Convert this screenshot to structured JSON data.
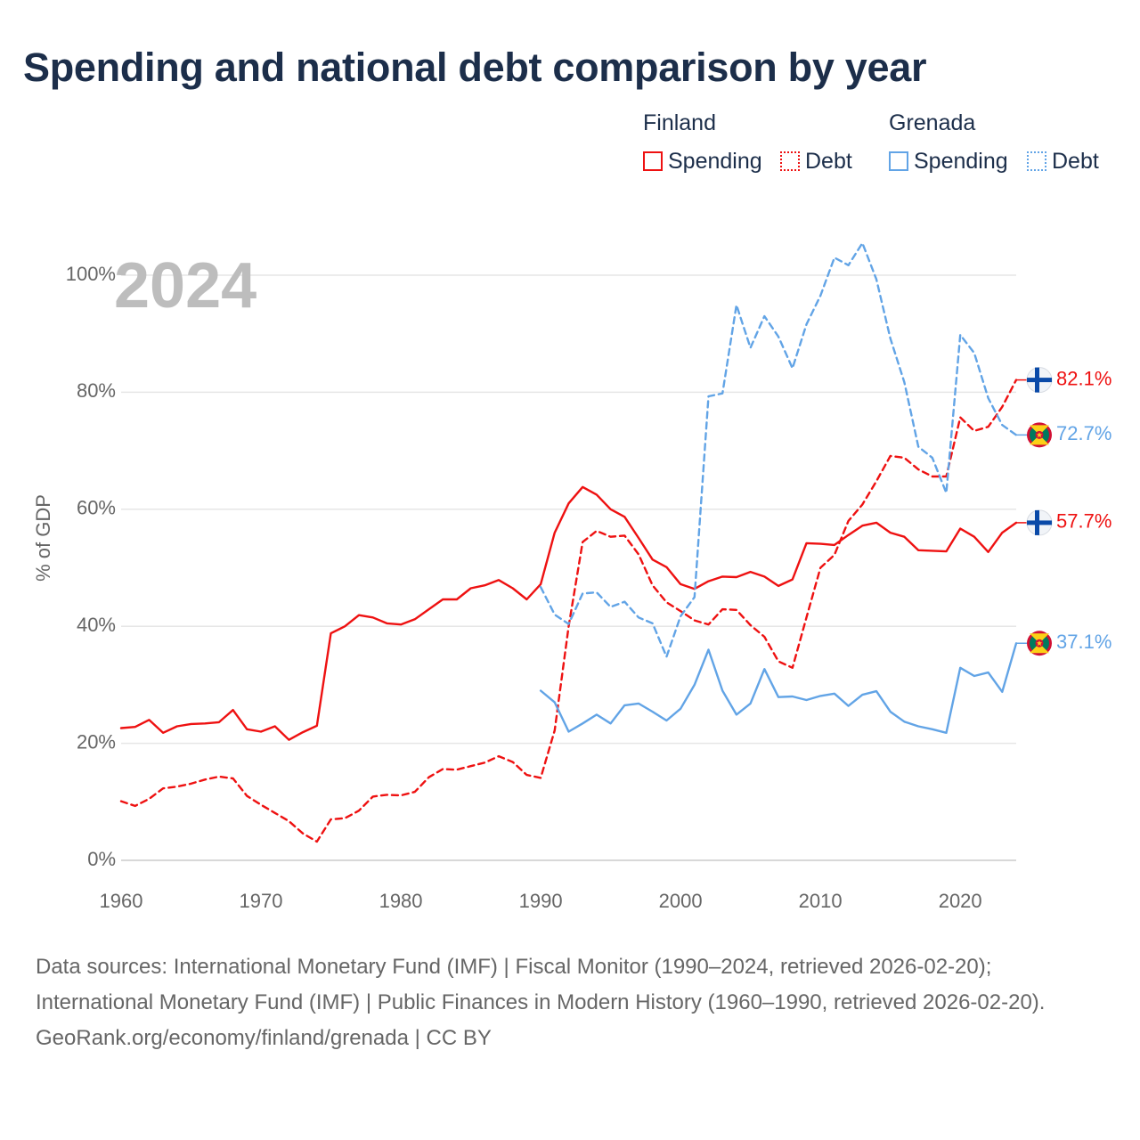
{
  "chart_data": {
    "type": "line",
    "title": "Spending and national debt comparison by year",
    "ylabel": "% of GDP",
    "xlabel": "",
    "year_label": "2024",
    "xlim": [
      1960,
      2024
    ],
    "ylim": [
      0,
      105
    ],
    "x_ticks": [
      1960,
      1970,
      1980,
      1990,
      2000,
      2010,
      2020
    ],
    "y_ticks": [
      {
        "value": 0,
        "label": "0%"
      },
      {
        "value": 20,
        "label": "20%"
      },
      {
        "value": 40,
        "label": "40%"
      },
      {
        "value": 60,
        "label": "60%"
      },
      {
        "value": 80,
        "label": "80%"
      },
      {
        "value": 100,
        "label": "100%"
      }
    ],
    "legend": [
      {
        "country": "Finland",
        "items": [
          "Spending",
          "Debt"
        ]
      },
      {
        "country": "Grenada",
        "items": [
          "Spending",
          "Debt"
        ]
      }
    ],
    "series": [
      {
        "name": "Finland Spending",
        "country": "Finland",
        "measure": "Spending",
        "style": "solid",
        "color": "#ee1111",
        "start_year": 1960,
        "end_label": "57.7%",
        "values": [
          22.6,
          22.8,
          24.0,
          21.8,
          22.9,
          23.3,
          23.4,
          23.6,
          25.7,
          22.4,
          22.0,
          22.9,
          20.6,
          21.9,
          23.0,
          38.8,
          40.0,
          41.9,
          41.5,
          40.5,
          40.3,
          41.2,
          42.9,
          44.6,
          44.6,
          46.5,
          47.0,
          47.9,
          46.5,
          44.6,
          47.2,
          56.0,
          61.0,
          63.8,
          62.5,
          60.0,
          58.7,
          55.1,
          51.4,
          50.1,
          47.2,
          46.4,
          47.7,
          48.5,
          48.4,
          49.3,
          48.5,
          46.9,
          48.0,
          54.2,
          54.1,
          53.9,
          55.6,
          57.2,
          57.7,
          56.0,
          55.3,
          53.0,
          52.9,
          52.8,
          56.7,
          55.3,
          52.7,
          56.0,
          57.7
        ]
      },
      {
        "name": "Finland Debt",
        "country": "Finland",
        "measure": "Debt",
        "style": "dashed",
        "color": "#ee1111",
        "start_year": 1960,
        "end_label": "82.1%",
        "values": [
          10.1,
          9.3,
          10.5,
          12.3,
          12.6,
          13.1,
          13.8,
          14.3,
          14.0,
          11.0,
          9.5,
          8.1,
          6.7,
          4.6,
          3.2,
          7.0,
          7.2,
          8.5,
          10.9,
          11.2,
          11.1,
          11.7,
          14.2,
          15.6,
          15.5,
          16.1,
          16.7,
          17.8,
          16.8,
          14.6,
          14.1,
          22.2,
          40.0,
          54.4,
          56.3,
          55.3,
          55.5,
          52.3,
          47.0,
          44.1,
          42.6,
          41.0,
          40.3,
          42.9,
          42.8,
          40.2,
          38.2,
          34.0,
          32.9,
          41.5,
          50.0,
          52.2,
          58.0,
          60.8,
          64.8,
          69.1,
          68.8,
          66.8,
          65.6,
          65.6,
          75.7,
          73.4,
          74.1,
          77.5,
          82.1
        ]
      },
      {
        "name": "Grenada Spending",
        "country": "Grenada",
        "measure": "Spending",
        "style": "solid",
        "color": "#62a4e6",
        "start_year": 1990,
        "end_label": "37.1%",
        "values": [
          29.0,
          27.0,
          22.0,
          23.4,
          24.9,
          23.4,
          26.5,
          26.8,
          25.4,
          23.9,
          25.9,
          30.0,
          36.0,
          29.0,
          24.9,
          26.8,
          32.7,
          27.9,
          28.0,
          27.4,
          28.1,
          28.5,
          26.4,
          28.3,
          28.9,
          25.4,
          23.7,
          22.9,
          22.4,
          21.8,
          32.9,
          31.5,
          32.1,
          28.8,
          37.1
        ]
      },
      {
        "name": "Grenada Debt",
        "country": "Grenada",
        "measure": "Debt",
        "style": "dashed",
        "color": "#62a4e6",
        "start_year": 1990,
        "end_label": "72.7%",
        "values": [
          46.7,
          42.0,
          40.4,
          45.6,
          45.8,
          43.3,
          44.2,
          41.5,
          40.5,
          34.8,
          41.7,
          45.0,
          79.3,
          79.8,
          94.9,
          87.6,
          93.0,
          89.5,
          84.1,
          91.6,
          96.5,
          103.0,
          101.7,
          105.5,
          99.3,
          89.2,
          81.7,
          70.7,
          68.8,
          62.8,
          89.8,
          86.7,
          79.0,
          74.4,
          72.7
        ]
      }
    ]
  },
  "legend_labels": {
    "finland": "Finland",
    "grenada": "Grenada",
    "spending": "Spending",
    "debt": "Debt"
  },
  "colors": {
    "finland": "#ee1111",
    "grenada": "#62a4e6",
    "title": "#1c2e4a",
    "axis_text": "#666666",
    "grid": "#e6e6e6"
  },
  "flags": {
    "finland": "finland-flag-icon",
    "grenada": "grenada-flag-icon"
  },
  "footer": {
    "sources": "Data sources: International Monetary Fund (IMF) | Fiscal Monitor (1990–2024, retrieved 2026-02-20); International Monetary Fund (IMF) | Public Finances in Modern History (1960–1990, retrieved 2026-02-20).",
    "credit": "GeoRank.org/economy/finland/grenada | CC BY"
  }
}
